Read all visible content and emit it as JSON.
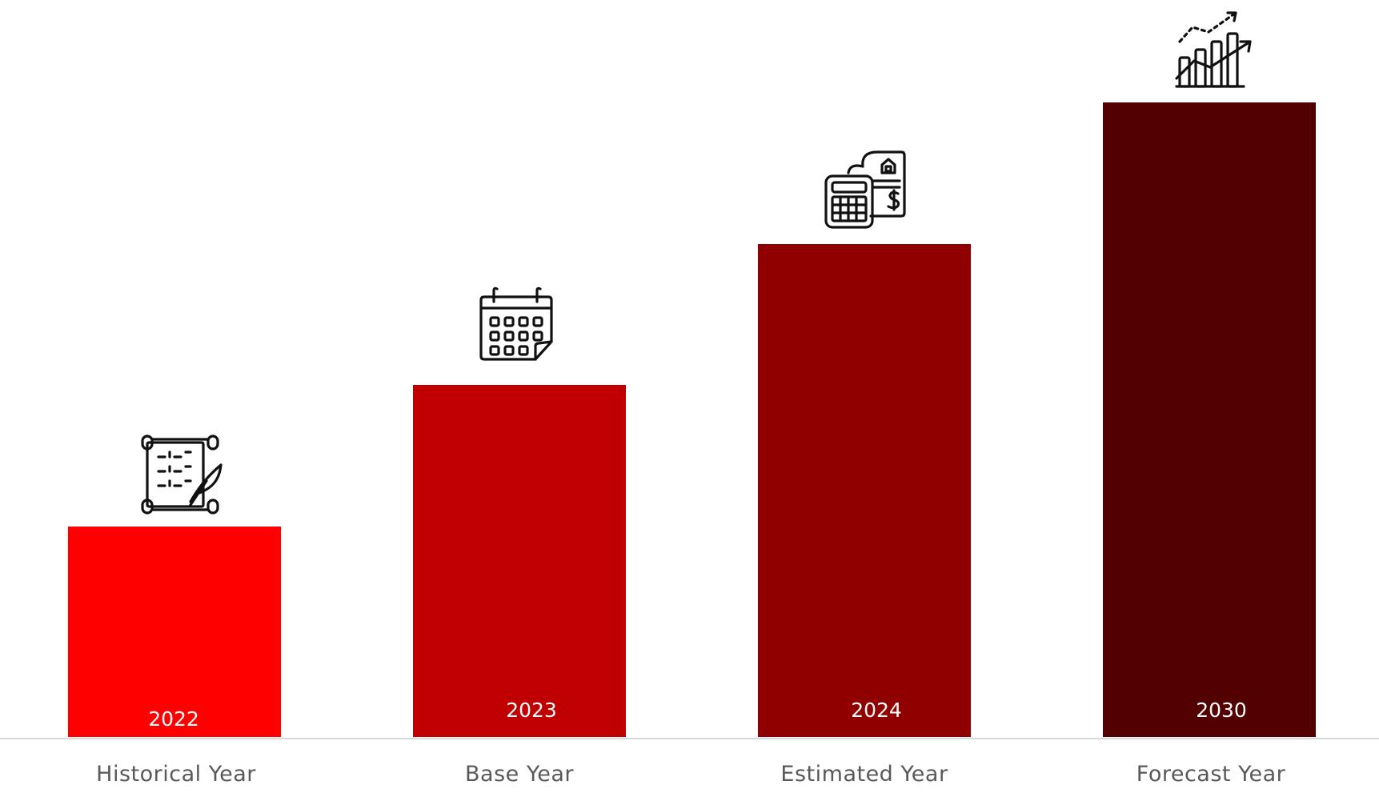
{
  "chart_data": {
    "type": "bar",
    "categories": [
      "Historical Year",
      "Base Year",
      "Estimated Year",
      "Forecast Year"
    ],
    "bar_labels": [
      "2022",
      "2023",
      "2024",
      "2030"
    ],
    "values": [
      30,
      50,
      70,
      90
    ],
    "colors": [
      "#ff0000",
      "#c00000",
      "#900000",
      "#520000"
    ],
    "icons": [
      "scroll-quill-icon",
      "calendar-icon",
      "calculator-document-icon",
      "growth-chart-icon"
    ],
    "ylim": [
      0,
      100
    ],
    "title": "",
    "xlabel": "",
    "ylabel": "",
    "grid": false,
    "legend": "none"
  }
}
